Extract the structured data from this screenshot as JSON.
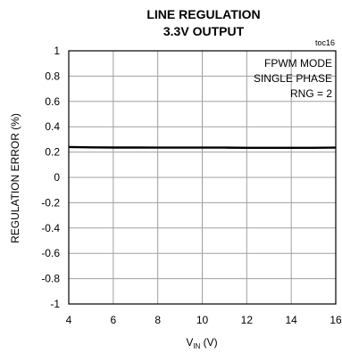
{
  "chart_data": {
    "type": "line",
    "title": "LINE REGULATION",
    "subtitle": "3.3V OUTPUT",
    "figure_code": "toc16",
    "xlabel_main": "V",
    "xlabel_sub": "IN",
    "xlabel_unit": " (V)",
    "ylabel": "REGULATION ERROR (%)",
    "xlim": [
      4,
      16
    ],
    "ylim": [
      -1,
      1
    ],
    "x_ticks": [
      4,
      6,
      8,
      10,
      12,
      14,
      16
    ],
    "x_tick_labels": [
      "4",
      "6",
      "8",
      "10",
      "12",
      "14",
      "16"
    ],
    "y_ticks": [
      1,
      0.8,
      0.6,
      0.4,
      0.2,
      0,
      -0.2,
      -0.4,
      -0.6,
      -0.8,
      -1
    ],
    "y_tick_labels": [
      "1",
      "0.8",
      "0.6",
      "0.4",
      "0.2",
      "0",
      "-0.2",
      "-0.4",
      "-0.6",
      "-0.8",
      "-1"
    ],
    "grid": true,
    "annotations": [
      "FPWM MODE",
      "SINGLE PHASE",
      "RNG = 2"
    ],
    "annotation_placement": "top-right",
    "series": [
      {
        "x": [
          4,
          5,
          6,
          7,
          8,
          9,
          10,
          11,
          12,
          13,
          14,
          15,
          16
        ],
        "y": [
          0.24,
          0.237,
          0.236,
          0.236,
          0.235,
          0.235,
          0.235,
          0.235,
          0.234,
          0.234,
          0.234,
          0.234,
          0.235
        ]
      }
    ],
    "colors": {
      "line": "#000000",
      "grid": "#a0a0a0",
      "frame": "#000000"
    }
  }
}
